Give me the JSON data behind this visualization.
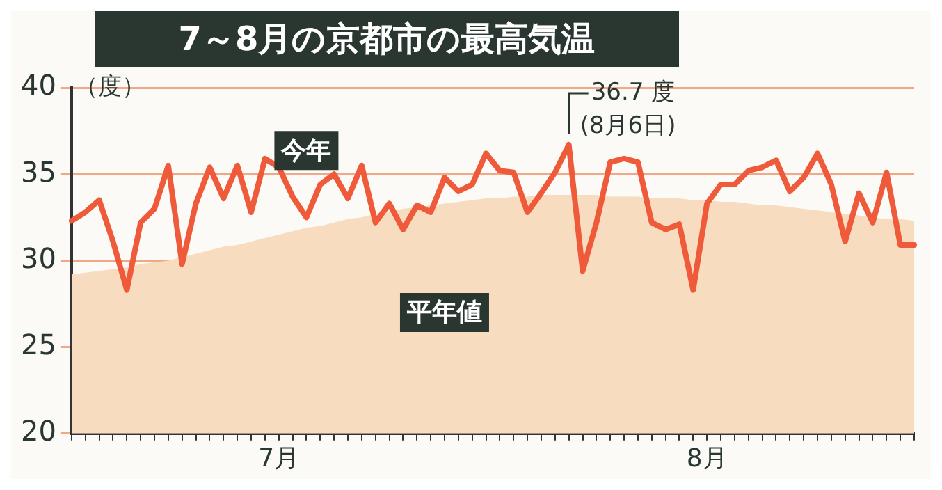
{
  "chart_data": {
    "type": "line",
    "title": "7～8月の京都市の最高気温",
    "ylabel": "（度）",
    "categories": [
      null,
      null,
      null,
      null,
      null,
      null,
      null,
      null,
      null,
      null,
      null,
      null,
      null,
      null,
      null,
      "7月",
      null,
      null,
      null,
      null,
      null,
      null,
      null,
      null,
      null,
      null,
      null,
      null,
      null,
      null,
      null,
      null,
      null,
      null,
      null,
      null,
      null,
      null,
      null,
      null,
      null,
      null,
      null,
      null,
      null,
      null,
      "8月",
      null,
      null,
      null,
      null,
      null,
      null,
      null,
      null,
      null,
      null,
      null,
      null,
      null,
      null,
      null
    ],
    "series": [
      {
        "name": "平年値",
        "type": "area",
        "color": "#f8dcc0",
        "values": [
          29.2,
          29.3,
          29.4,
          29.5,
          29.6,
          29.8,
          29.9,
          30.0,
          30.2,
          30.4,
          30.6,
          30.8,
          30.9,
          31.1,
          31.3,
          31.5,
          31.7,
          31.9,
          32.0,
          32.2,
          32.4,
          32.5,
          32.7,
          32.8,
          33.0,
          33.1,
          33.2,
          33.3,
          33.4,
          33.5,
          33.6,
          33.6,
          33.7,
          33.7,
          33.8,
          33.8,
          33.8,
          33.8,
          33.8,
          33.7,
          33.7,
          33.7,
          33.6,
          33.6,
          33.6,
          33.5,
          33.5,
          33.4,
          33.4,
          33.3,
          33.2,
          33.2,
          33.1,
          33.0,
          32.9,
          32.8,
          32.7,
          32.6,
          32.5,
          32.4,
          32.4,
          32.3
        ]
      },
      {
        "name": "今年",
        "type": "line",
        "color": "#ee5a3a",
        "values": [
          32.3,
          32.8,
          33.5,
          31.1,
          28.3,
          32.2,
          33.0,
          35.5,
          29.8,
          33.3,
          35.4,
          33.6,
          35.5,
          32.8,
          35.9,
          35.4,
          33.7,
          32.5,
          34.4,
          35.0,
          33.6,
          35.5,
          32.2,
          33.3,
          31.8,
          33.2,
          32.8,
          34.8,
          34.0,
          34.4,
          36.2,
          35.2,
          35.1,
          32.8,
          33.9,
          35.1,
          36.7,
          29.4,
          32.2,
          35.7,
          35.9,
          35.7,
          32.2,
          31.8,
          32.1,
          28.3,
          33.3,
          34.4,
          34.4,
          35.2,
          35.4,
          35.8,
          34.0,
          34.8,
          36.2,
          34.4,
          31.1,
          33.9,
          32.2,
          35.1,
          30.9,
          30.9
        ]
      }
    ],
    "ylim": [
      20,
      40
    ],
    "yticks": [
      20,
      25,
      30,
      35,
      40
    ],
    "grid": "y",
    "marker": "none",
    "annotations": [
      "36.7 度\n(8月6日)"
    ]
  }
}
